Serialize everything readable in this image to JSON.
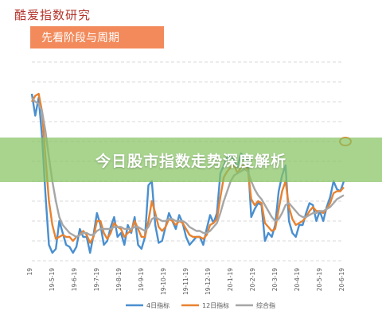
{
  "header": {
    "brand": "酷爱指数研究",
    "section_title": "先看阶段与周期"
  },
  "banner": {
    "title": "今日股市指数走势深度解析"
  },
  "colors": {
    "series_4d": "#4a8fcf",
    "series_12d": "#e8822f",
    "series_composite": "#a6a6a6",
    "grid": "#d9d9d9",
    "brand": "#b3352d",
    "section_box": "#f28a5b",
    "banner": "#86c463"
  },
  "chart_data": {
    "type": "line",
    "x_tick_labels": [
      "19",
      "19-5-19",
      "19-6-19",
      "19-7-19",
      "19-8-19",
      "19-9-19",
      "19-10-19",
      "19-11-19",
      "19-12-19",
      "20-1-19",
      "20-2-19",
      "20-3-19",
      "20-4-19",
      "20-5-19",
      "20-6-19"
    ],
    "ylim": [
      0,
      100
    ],
    "grid": true,
    "legend_position": "bottom",
    "series": [
      {
        "name": "4日指标",
        "color": "#4a8fcf",
        "values": [
          84,
          73,
          82,
          62,
          33,
          8,
          4,
          6,
          20,
          14,
          8,
          7,
          4,
          7,
          16,
          12,
          12,
          4,
          13,
          24,
          18,
          8,
          10,
          17,
          22,
          12,
          14,
          8,
          18,
          14,
          22,
          8,
          6,
          12,
          38,
          40,
          18,
          9,
          10,
          17,
          24,
          20,
          16,
          23,
          19,
          12,
          8,
          10,
          12,
          12,
          8,
          16,
          23,
          19,
          24,
          44,
          48,
          52,
          53,
          50,
          47,
          54,
          52,
          51,
          22,
          26,
          29,
          28,
          10,
          14,
          12,
          18,
          35,
          43,
          48,
          20,
          14,
          12,
          18,
          18,
          24,
          29,
          28,
          20,
          25,
          20,
          27,
          32,
          40,
          36,
          35,
          40
        ]
      },
      {
        "name": "12日指标",
        "color": "#e8822f",
        "values": [
          80,
          83,
          84,
          75,
          52,
          30,
          18,
          11,
          12,
          13,
          12,
          12,
          10,
          12,
          13,
          15,
          13,
          9,
          12,
          20,
          20,
          14,
          11,
          14,
          19,
          17,
          16,
          12,
          14,
          15,
          20,
          16,
          12,
          12,
          20,
          30,
          24,
          17,
          15,
          17,
          21,
          20,
          18,
          20,
          19,
          16,
          13,
          12,
          12,
          12,
          11,
          13,
          18,
          19,
          21,
          32,
          42,
          45,
          47,
          48,
          44,
          47,
          48,
          46,
          31,
          28,
          30,
          29,
          19,
          17,
          15,
          16,
          26,
          35,
          40,
          27,
          21,
          18,
          19,
          20,
          22,
          25,
          27,
          25,
          25,
          24,
          26,
          29,
          34,
          35,
          35,
          37
        ]
      },
      {
        "name": "综合指",
        "color": "#a6a6a6",
        "values": [
          82,
          80,
          79,
          75,
          65,
          52,
          40,
          30,
          22,
          18,
          16,
          14,
          13,
          12,
          13,
          14,
          14,
          13,
          13,
          15,
          16,
          16,
          16,
          16,
          17,
          17,
          17,
          16,
          16,
          16,
          17,
          17,
          16,
          15,
          17,
          21,
          22,
          21,
          20,
          20,
          21,
          21,
          20,
          20,
          20,
          19,
          17,
          16,
          15,
          15,
          14,
          14,
          15,
          17,
          19,
          24,
          30,
          35,
          40,
          43,
          44,
          45,
          46,
          45,
          40,
          36,
          33,
          31,
          28,
          25,
          22,
          20,
          21,
          24,
          28,
          29,
          27,
          25,
          23,
          22,
          22,
          23,
          24,
          24,
          25,
          25,
          26,
          27,
          29,
          31,
          32,
          33
        ]
      }
    ]
  }
}
